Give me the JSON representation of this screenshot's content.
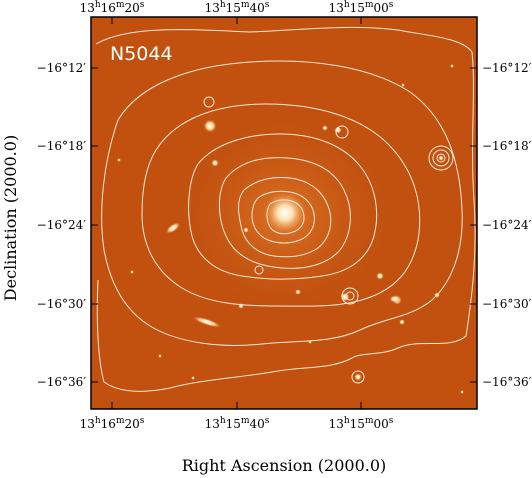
{
  "figure": {
    "panel_label": "N5044",
    "x_axis": {
      "title": "Right Ascension (2000.0)",
      "ticks": [
        {
          "h": "13",
          "m": "16",
          "s": "20"
        },
        {
          "h": "13",
          "m": "15",
          "s": "40"
        },
        {
          "h": "13",
          "m": "15",
          "s": "00"
        }
      ]
    },
    "y_axis": {
      "title": "Declination (2000.0)",
      "ticks": [
        {
          "deg": "−16°",
          "min": "12"
        },
        {
          "deg": "−16°",
          "min": "18"
        },
        {
          "deg": "−16°",
          "min": "24"
        },
        {
          "deg": "−16°",
          "min": "30"
        },
        {
          "deg": "−16°",
          "min": "36"
        }
      ]
    },
    "colors": {
      "image_background": "#c2510f",
      "contour": "#f4ead8",
      "frame": "#000000"
    }
  }
}
